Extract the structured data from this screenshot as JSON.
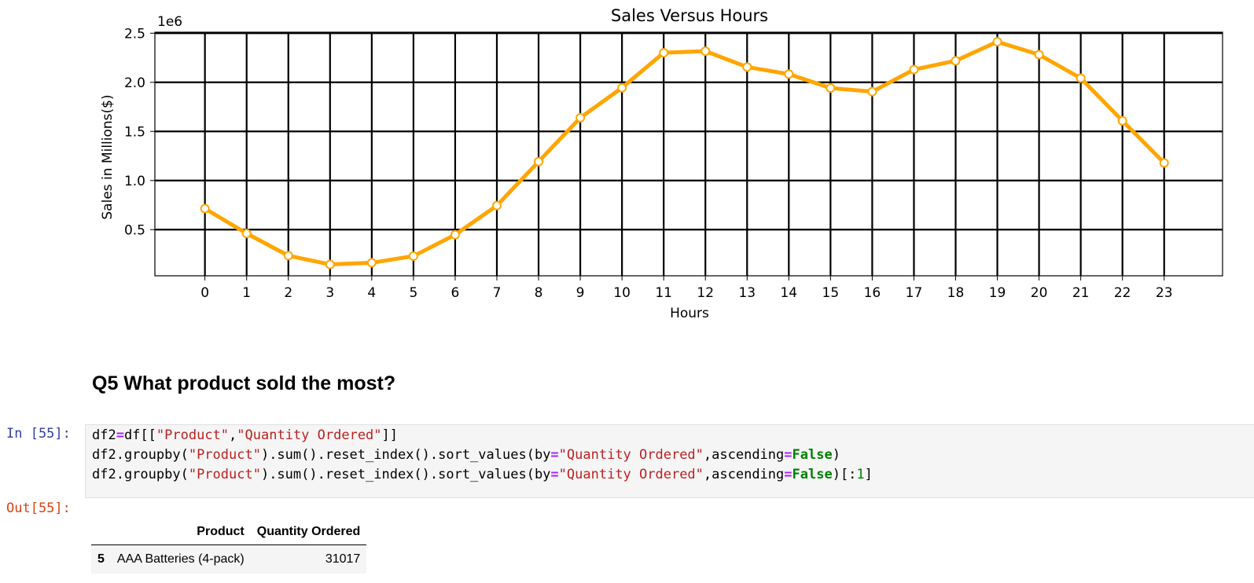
{
  "chart_data": {
    "type": "line",
    "title": "Sales Versus Hours",
    "xlabel": "Hours",
    "ylabel": "Sales in Millions($)",
    "y_offset_label": "1e6",
    "x": [
      0,
      1,
      2,
      3,
      4,
      5,
      6,
      7,
      8,
      9,
      10,
      11,
      12,
      13,
      14,
      15,
      16,
      17,
      18,
      19,
      20,
      21,
      22,
      23
    ],
    "x_tick_labels": [
      "0",
      "1",
      "2",
      "3",
      "4",
      "5",
      "6",
      "7",
      "8",
      "9",
      "10",
      "11",
      "12",
      "13",
      "14",
      "15",
      "16",
      "17",
      "18",
      "19",
      "20",
      "21",
      "22",
      "23"
    ],
    "y_ticks": [
      0.5,
      1.0,
      1.5,
      2.0,
      2.5
    ],
    "y_tick_labels": [
      "0.5",
      "1.0",
      "1.5",
      "2.0",
      "2.5"
    ],
    "series": [
      {
        "values": [
          713721,
          460866,
          234851,
          145757,
          162661,
          230679,
          448113,
          744854,
          1192348,
          1639030,
          1944286,
          2300610,
          2316821,
          2155389,
          2083672,
          1941549,
          1904601,
          2129362,
          2219348,
          2412939,
          2281716,
          2042000,
          1607550,
          1179304
        ]
      }
    ],
    "xlim": [
      -1.2,
      24.4
    ],
    "ylim": [
      0.03,
      2.51
    ],
    "grid": true,
    "line_color": "#ffa500",
    "marker_fill": "#ffffff"
  },
  "markdown": {
    "heading": "Q5 What product sold the most?"
  },
  "code_cell": {
    "prompt_in": "In [55]:",
    "prompt_out": "Out[55]:"
  },
  "output_table": {
    "columns": [
      "Product",
      "Quantity Ordered"
    ],
    "rows": [
      {
        "index": "5",
        "product": "AAA Batteries (4-pack)",
        "quantity": "31017"
      }
    ]
  }
}
